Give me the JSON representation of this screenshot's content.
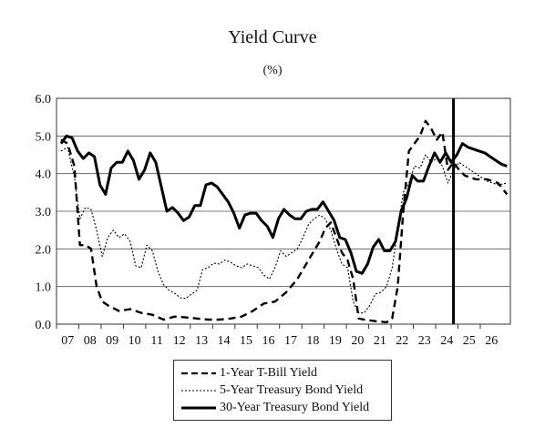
{
  "chart_data": {
    "type": "line",
    "title": "Yield Curve",
    "subtitle": "(%)",
    "xlabel": "",
    "ylabel": "",
    "ylim": [
      0,
      6
    ],
    "yticks": [
      "0.0",
      "1.0",
      "2.0",
      "3.0",
      "4.0",
      "5.0",
      "6.0"
    ],
    "xlim": [
      6.5,
      26.85
    ],
    "xticks": [
      "07",
      "08",
      "09",
      "10",
      "11",
      "12",
      "13",
      "14",
      "15",
      "16",
      "17",
      "18",
      "19",
      "20",
      "21",
      "22",
      "23",
      "24",
      "25",
      "26"
    ],
    "gridlines": "horizontal",
    "legend_position": "bottom",
    "vertical_marker_x": 24.3,
    "series": [
      {
        "name": "1-Year T-Bill Yield",
        "style": "dashed",
        "color": "#000000",
        "x": [
          6.7,
          7.0,
          7.3,
          7.55,
          7.8,
          8.05,
          8.3,
          8.55,
          8.8,
          9.3,
          9.8,
          10.3,
          10.8,
          11.3,
          11.8,
          12.3,
          12.8,
          13.3,
          13.8,
          14.3,
          14.8,
          15.3,
          15.8,
          16.3,
          16.8,
          17.3,
          17.8,
          18.3,
          18.55,
          18.8,
          19.05,
          19.3,
          19.55,
          19.8,
          20.05,
          20.3,
          20.8,
          21.3,
          21.55,
          21.8,
          22.05,
          22.3,
          22.55,
          22.8,
          23.05,
          23.3,
          23.55,
          23.8,
          24.05,
          24.3,
          24.55,
          24.8,
          25.3,
          25.8,
          26.3,
          26.7
        ],
        "values": [
          4.9,
          4.8,
          4.2,
          2.1,
          2.1,
          2.0,
          1.0,
          0.6,
          0.5,
          0.35,
          0.4,
          0.3,
          0.25,
          0.12,
          0.2,
          0.18,
          0.15,
          0.12,
          0.12,
          0.15,
          0.2,
          0.35,
          0.55,
          0.6,
          0.85,
          1.2,
          1.7,
          2.2,
          2.55,
          2.7,
          2.3,
          1.9,
          1.7,
          1.2,
          0.15,
          0.12,
          0.08,
          0.05,
          0.15,
          1.0,
          3.0,
          4.6,
          4.8,
          5.0,
          5.4,
          5.2,
          4.9,
          5.1,
          4.1,
          4.3,
          4.1,
          3.95,
          3.85,
          3.85,
          3.75,
          3.45
        ]
      },
      {
        "name": "5-Year Treasury Bond Yield",
        "style": "dotted",
        "color": "#000000",
        "x": [
          6.7,
          7.0,
          7.3,
          7.55,
          7.8,
          8.05,
          8.3,
          8.55,
          8.8,
          9.05,
          9.3,
          9.55,
          9.8,
          10.05,
          10.3,
          10.55,
          10.8,
          11.05,
          11.3,
          11.55,
          11.8,
          12.05,
          12.3,
          12.55,
          12.8,
          13.05,
          13.3,
          13.55,
          13.8,
          14.05,
          14.3,
          14.55,
          14.8,
          15.05,
          15.3,
          15.55,
          15.8,
          16.05,
          16.3,
          16.55,
          16.8,
          17.05,
          17.3,
          17.55,
          17.8,
          18.05,
          18.3,
          18.55,
          18.8,
          19.05,
          19.3,
          19.55,
          19.8,
          20.05,
          20.3,
          20.55,
          20.8,
          21.05,
          21.3,
          21.55,
          21.8,
          22.05,
          22.3,
          22.55,
          22.8,
          23.05,
          23.3,
          23.55,
          23.8,
          24.05,
          24.3,
          24.55,
          24.8,
          25.3,
          25.8,
          26.3,
          26.7
        ],
        "values": [
          4.6,
          4.7,
          3.9,
          2.8,
          3.1,
          3.05,
          2.5,
          1.8,
          2.3,
          2.5,
          2.3,
          2.4,
          2.2,
          1.55,
          1.5,
          2.1,
          1.95,
          1.4,
          1.05,
          0.9,
          0.82,
          0.7,
          0.68,
          0.8,
          0.9,
          1.45,
          1.5,
          1.62,
          1.6,
          1.7,
          1.65,
          1.55,
          1.5,
          1.6,
          1.55,
          1.5,
          1.3,
          1.2,
          1.5,
          1.95,
          1.8,
          1.9,
          2.0,
          2.3,
          2.65,
          2.8,
          2.9,
          2.8,
          2.5,
          2.0,
          1.6,
          1.5,
          0.6,
          0.3,
          0.3,
          0.5,
          0.8,
          0.85,
          1.0,
          1.5,
          2.5,
          3.5,
          3.75,
          4.2,
          4.15,
          4.5,
          4.3,
          4.4,
          4.2,
          3.75,
          4.1,
          4.3,
          4.2,
          4.0,
          3.8,
          3.7,
          3.75
        ]
      },
      {
        "name": "30-Year Treasury Bond Yield",
        "style": "solid",
        "color": "#000000",
        "x": [
          6.7,
          6.95,
          7.2,
          7.45,
          7.7,
          7.95,
          8.2,
          8.45,
          8.7,
          8.95,
          9.2,
          9.45,
          9.7,
          9.95,
          10.2,
          10.45,
          10.7,
          10.95,
          11.2,
          11.45,
          11.7,
          11.95,
          12.2,
          12.45,
          12.7,
          12.95,
          13.2,
          13.45,
          13.7,
          13.95,
          14.2,
          14.45,
          14.7,
          14.95,
          15.2,
          15.45,
          15.7,
          15.95,
          16.2,
          16.45,
          16.7,
          16.95,
          17.2,
          17.45,
          17.7,
          17.95,
          18.2,
          18.45,
          18.7,
          18.95,
          19.2,
          19.45,
          19.7,
          19.95,
          20.2,
          20.45,
          20.7,
          20.95,
          21.2,
          21.45,
          21.7,
          21.95,
          22.2,
          22.45,
          22.7,
          22.95,
          23.2,
          23.45,
          23.7,
          23.95,
          24.2,
          24.45,
          24.7,
          24.95,
          25.2,
          25.45,
          25.7,
          25.95,
          26.2,
          26.45,
          26.7
        ],
        "values": [
          4.8,
          5.0,
          4.95,
          4.6,
          4.4,
          4.55,
          4.45,
          3.7,
          3.45,
          4.15,
          4.3,
          4.3,
          4.6,
          4.35,
          3.85,
          4.1,
          4.55,
          4.3,
          3.65,
          3.0,
          3.1,
          2.95,
          2.75,
          2.85,
          3.15,
          3.15,
          3.7,
          3.75,
          3.65,
          3.45,
          3.25,
          2.95,
          2.55,
          2.9,
          2.95,
          2.95,
          2.75,
          2.6,
          2.3,
          2.8,
          3.05,
          2.9,
          2.8,
          2.8,
          3.0,
          3.05,
          3.05,
          3.25,
          3.0,
          2.75,
          2.3,
          2.25,
          1.9,
          1.4,
          1.35,
          1.6,
          2.05,
          2.25,
          1.95,
          1.95,
          2.2,
          3.0,
          3.35,
          3.95,
          3.8,
          3.8,
          4.2,
          4.55,
          4.3,
          4.55,
          4.3,
          4.5,
          4.8,
          4.7,
          4.65,
          4.6,
          4.55,
          4.45,
          4.35,
          4.25,
          4.2
        ]
      }
    ]
  }
}
